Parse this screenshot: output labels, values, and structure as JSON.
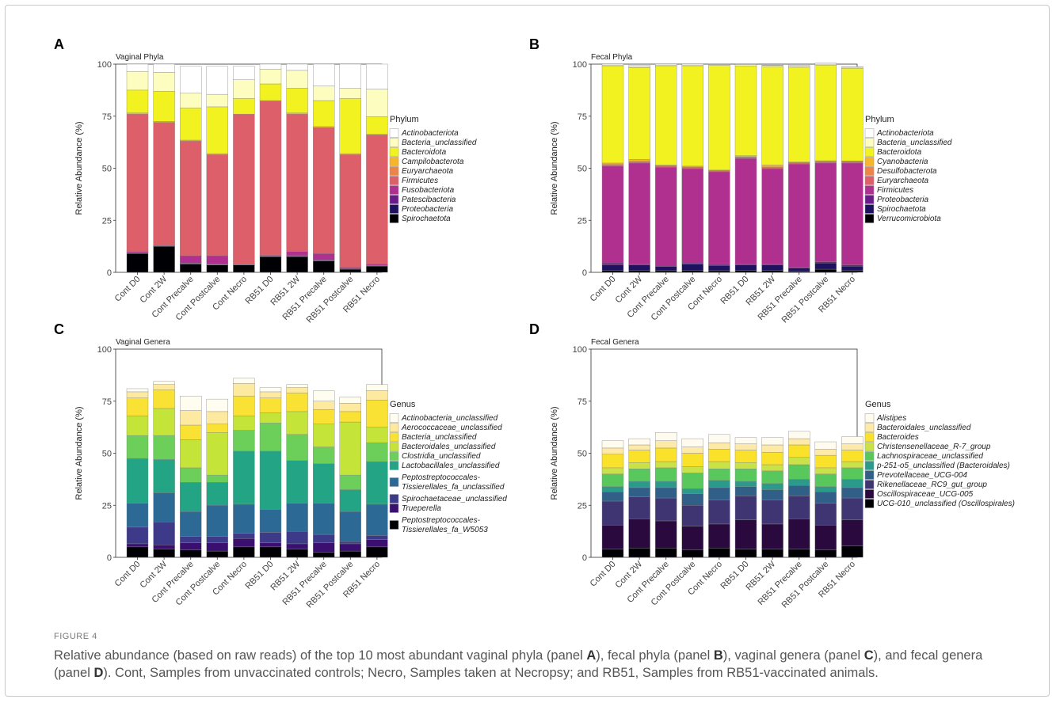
{
  "figure": {
    "label": "FIGURE 4",
    "caption_parts": [
      {
        "t": "Relative abundance (based on raw reads) of the top 10 most abundant vaginal phyla (panel "
      },
      {
        "t": "A",
        "b": true
      },
      {
        "t": "), fecal phyla (panel "
      },
      {
        "t": "B",
        "b": true
      },
      {
        "t": "), vaginal genera (panel "
      },
      {
        "t": "C",
        "b": true
      },
      {
        "t": "), and fecal genera (panel "
      },
      {
        "t": "D",
        "b": true
      },
      {
        "t": "). Cont, Samples from unvaccinated controls; Necro, Samples taken at Necropsy; and RB51, Samples from RB51-vaccinated animals."
      }
    ]
  },
  "chart_data": [
    {
      "panel": "A",
      "type": "bar",
      "stacked": true,
      "title": "Vaginal Phyla",
      "ylabel": "Relative Abundance (%)",
      "ylim": [
        0,
        100
      ],
      "yticks": [
        0,
        25,
        50,
        75,
        100
      ],
      "categories": [
        "Cont D0",
        "Cont 2W",
        "Cont Precalve",
        "Cont Postcalve",
        "Cont Necro",
        "RB51 D0",
        "RB51 2W",
        "RB51 Precalve",
        "RB51 Postcalve",
        "RB51 Necro"
      ],
      "legend_title": "Phylum",
      "series": [
        {
          "name": "Spirochaetota",
          "color": "#000004",
          "values": [
            9,
            12.5,
            4,
            3.5,
            3.5,
            7.5,
            7.5,
            5.5,
            1.5,
            3
          ]
        },
        {
          "name": "Proteobacteria",
          "color": "#1d1160",
          "values": [
            0.2,
            0.2,
            0.2,
            0.2,
            0.2,
            0.2,
            0.2,
            0.2,
            0.2,
            0.2
          ]
        },
        {
          "name": "Patescibacteria",
          "color": "#6a1a8a",
          "values": [
            0.3,
            0.2,
            0.3,
            0.3,
            0.2,
            0.2,
            0.3,
            0.3,
            0.3,
            0.2
          ]
        },
        {
          "name": "Fusobacteriota",
          "color": "#b0308f",
          "values": [
            0.5,
            0.1,
            3.5,
            4,
            0.1,
            0.3,
            2,
            3,
            0.5,
            0.6
          ]
        },
        {
          "name": "Firmicutes",
          "color": "#dc5f6a",
          "values": [
            66,
            59,
            55,
            48.5,
            72,
            74,
            66,
            60.5,
            54,
            62
          ]
        },
        {
          "name": "Euryarchaeota",
          "color": "#ee8548",
          "values": [
            0,
            0,
            0,
            0,
            0,
            0,
            0,
            0,
            0,
            0
          ]
        },
        {
          "name": "Campilobacterota",
          "color": "#f7b52c",
          "values": [
            0.5,
            0.5,
            0.5,
            0.5,
            0,
            0.3,
            0.5,
            0.5,
            0.5,
            0.3
          ]
        },
        {
          "name": "Bacteroidota",
          "color": "#f1f21f",
          "values": [
            11,
            14.5,
            15.5,
            22.5,
            7.5,
            8,
            12,
            12.5,
            26.5,
            8.5
          ]
        },
        {
          "name": "Bacteria_unclassified",
          "color": "#fcfdbf",
          "values": [
            9,
            9,
            7,
            6,
            9,
            7,
            8.5,
            7,
            5,
            13.2
          ]
        },
        {
          "name": "Actinobacteriota",
          "color": "#ffffff",
          "values": [
            3.5,
            4,
            13,
            13.5,
            6.5,
            2.5,
            3,
            10.5,
            11.5,
            12
          ]
        }
      ]
    },
    {
      "panel": "B",
      "type": "bar",
      "stacked": true,
      "title": "Fecal Phyla",
      "ylabel": "Relative Abundance (%)",
      "ylim": [
        0,
        100
      ],
      "yticks": [
        0,
        25,
        50,
        75,
        100
      ],
      "categories": [
        "Cont D0",
        "Cont 2W",
        "Cont Precalve",
        "Cont Postcalve",
        "Cont Necro",
        "RB51 D0",
        "RB51 2W",
        "RB51 Precalve",
        "RB51 Postcalve",
        "RB51 Necro"
      ],
      "legend_title": "Phylum",
      "series": [
        {
          "name": "Verrucomicrobiota",
          "color": "#000004",
          "values": [
            1,
            1,
            0.8,
            1,
            0.8,
            1,
            1,
            0.5,
            1.5,
            0.8
          ]
        },
        {
          "name": "Spirochaetota",
          "color": "#1d1160",
          "values": [
            2.5,
            2.5,
            2,
            3,
            2.5,
            2.5,
            2.5,
            1.5,
            3,
            2.2
          ]
        },
        {
          "name": "Proteobacteria",
          "color": "#6a1a8a",
          "values": [
            1,
            0.5,
            0.5,
            0.5,
            0.5,
            0.5,
            0.5,
            0.5,
            0.5,
            0.5
          ]
        },
        {
          "name": "Firmicutes",
          "color": "#b0308f",
          "values": [
            46.5,
            48.5,
            47.2,
            45.3,
            44.5,
            50.7,
            45.8,
            49.5,
            47.5,
            49
          ]
        },
        {
          "name": "Euryarchaeota",
          "color": "#dc5f6a",
          "values": [
            0.5,
            0.5,
            0.5,
            0.5,
            0.5,
            0.5,
            0.5,
            0.5,
            0.5,
            0.5
          ]
        },
        {
          "name": "Desulfobacterota",
          "color": "#ee8548",
          "values": [
            0.3,
            0.3,
            0.3,
            0.3,
            0.3,
            0.3,
            0.3,
            0.3,
            0.3,
            0.3
          ]
        },
        {
          "name": "Cyanobacteria",
          "color": "#f7b52c",
          "values": [
            0.7,
            1,
            0.2,
            0.4,
            0,
            0.5,
            1,
            0.2,
            0.3,
            0.2
          ]
        },
        {
          "name": "Bacteroidota",
          "color": "#f1f21f",
          "values": [
            46.5,
            44,
            47.5,
            48,
            50.3,
            43.2,
            47.2,
            45.5,
            45.9,
            44.5
          ]
        },
        {
          "name": "Bacteria_unclassified",
          "color": "#fcfdbf",
          "values": [
            0.5,
            0.5,
            0.5,
            0.5,
            0.4,
            0.5,
            0.5,
            0.5,
            0.5,
            0.5
          ]
        },
        {
          "name": "Actinobacteriota",
          "color": "#ffffff",
          "values": [
            0.5,
            0.7,
            0.5,
            0.5,
            0.2,
            0.3,
            0.2,
            0.5,
            0.5,
            0.3
          ]
        }
      ]
    },
    {
      "panel": "C",
      "type": "bar",
      "stacked": true,
      "title": "Vaginal Genera",
      "ylabel": "Relative Abundance (%)",
      "ylim": [
        0,
        100
      ],
      "yticks": [
        0,
        25,
        50,
        75,
        100
      ],
      "categories": [
        "Cont D0",
        "Cont 2W",
        "Cont Precalve",
        "Cont Postcalve",
        "Cont Necro",
        "RB51 D0",
        "RB51 2W",
        "RB51 Precalve",
        "RB51 Postcalve",
        "RB51 Necro"
      ],
      "legend_title": "Genus",
      "series": [
        {
          "name": "Peptostreptococcales-Tissierellales_fa_W5053",
          "color": "#000004",
          "values": [
            5,
            4,
            3.5,
            3,
            5,
            5,
            4,
            2.5,
            3,
            5
          ]
        },
        {
          "name": "Trueperella",
          "color": "#3b0f70",
          "values": [
            1.5,
            2,
            3.5,
            4,
            4,
            2,
            2.5,
            4.5,
            3.5,
            3.5
          ]
        },
        {
          "name": "Spirochaetaceae_unclassified",
          "color": "#3d3a8a",
          "values": [
            8,
            11,
            3,
            3,
            2.5,
            5,
            6,
            4,
            1,
            2
          ]
        },
        {
          "name": "Peptostreptococcales-Tissierellales_fa_unclassified",
          "color": "#2c6a95",
          "values": [
            11.5,
            14,
            12,
            15,
            14,
            11,
            13.5,
            15,
            14.5,
            15
          ]
        },
        {
          "name": "Lactobacillales_unclassified",
          "color": "#23a585",
          "values": [
            21.5,
            16,
            14,
            11,
            25.5,
            28,
            20.5,
            19,
            10.5,
            20.5
          ]
        },
        {
          "name": "Clostridia_unclassified",
          "color": "#6bcf5a",
          "values": [
            11,
            11.5,
            7,
            3.5,
            10,
            13.5,
            12.5,
            8,
            7,
            9
          ]
        },
        {
          "name": "Bacteroidales_unclassified",
          "color": "#c5e43a",
          "values": [
            9.5,
            13,
            13.5,
            20.5,
            7,
            5,
            11,
            11,
            25.5,
            7.5
          ]
        },
        {
          "name": "Bacteria_unclassified",
          "color": "#f9e234",
          "values": [
            8.5,
            9,
            7,
            4,
            9.5,
            7,
            9,
            7,
            5,
            13
          ]
        },
        {
          "name": "Aerococcaceae_unclassified",
          "color": "#fdeaa0",
          "values": [
            3,
            2.5,
            7,
            6,
            6,
            3,
            2.5,
            4,
            4,
            4.5
          ]
        },
        {
          "name": "Actinobacteria_unclassified",
          "color": "#fffdf0",
          "values": [
            1.5,
            1.5,
            7,
            6,
            2.5,
            2,
            1.5,
            5,
            3,
            3
          ]
        }
      ]
    },
    {
      "panel": "D",
      "type": "bar",
      "stacked": true,
      "title": "Fecal Genera",
      "ylabel": "Relative Abundance (%)",
      "ylim": [
        0,
        100
      ],
      "yticks": [
        0,
        25,
        50,
        75,
        100
      ],
      "categories": [
        "Cont D0",
        "Cont 2W",
        "Cont Precalve",
        "Cont Postcalve",
        "Cont Necro",
        "RB51 D0",
        "RB51 2W",
        "RB51 Precalve",
        "RB51 Postcalve",
        "RB51 Necro"
      ],
      "legend_title": "Genus",
      "series": [
        {
          "name": "UCG-010_unclassified (Oscillospirales)",
          "color": "#000004",
          "values": [
            4,
            4.5,
            4.5,
            3.5,
            4.5,
            4,
            4,
            4,
            3.5,
            5.5
          ]
        },
        {
          "name": "Oscillospiraceae_UCG-005",
          "color": "#2a0a3e",
          "values": [
            11.5,
            14,
            13,
            11.5,
            11.5,
            14,
            12,
            14.5,
            12,
            12.5
          ]
        },
        {
          "name": "Rikenellaceae_RC9_gut_group",
          "color": "#3f3573",
          "values": [
            11.5,
            10.5,
            11,
            10,
            11.5,
            11.5,
            11.5,
            11,
            10.5,
            10.5
          ]
        },
        {
          "name": "Prevotellaceae_UCG-004",
          "color": "#305f88",
          "values": [
            4.5,
            4.5,
            5,
            5.5,
            6,
            4.5,
            5,
            5,
            5.5,
            5
          ]
        },
        {
          "name": "p-251-o5_unclassified (Bacteroidales)",
          "color": "#2b9a8a",
          "values": [
            2.5,
            3,
            3,
            2.5,
            3.5,
            2.5,
            3,
            3,
            2.5,
            4
          ]
        },
        {
          "name": "Lachnospiraceae_unclassified",
          "color": "#58c85d",
          "values": [
            6,
            6,
            6.5,
            7.5,
            5.5,
            6,
            6,
            7,
            6,
            5.5
          ]
        },
        {
          "name": "Christensenellaceae_R-7_group",
          "color": "#c8e247",
          "values": [
            3,
            3,
            3,
            3,
            3.5,
            3,
            3,
            3.5,
            3,
            3
          ]
        },
        {
          "name": "Bacteroides",
          "color": "#fae12a",
          "values": [
            6.5,
            6,
            6.5,
            6.5,
            6,
            6,
            6,
            6,
            6,
            5.5
          ]
        },
        {
          "name": "Bacteroidales_unclassified",
          "color": "#fde9a8",
          "values": [
            3,
            2.5,
            3.5,
            3,
            3,
            3,
            3.5,
            3,
            3,
            3
          ]
        },
        {
          "name": "Alistipes",
          "color": "#fffbee",
          "values": [
            3.5,
            3,
            4,
            4,
            4,
            3,
            3.5,
            3.5,
            3.5,
            3.5
          ]
        }
      ]
    }
  ]
}
